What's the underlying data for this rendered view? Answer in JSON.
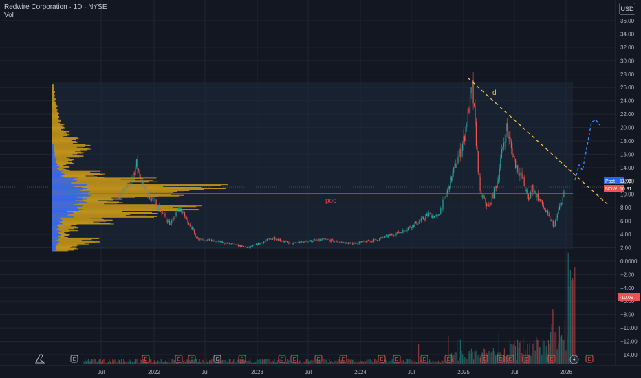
{
  "header": {
    "title": "Redwire Corporation · 1D · NYSE",
    "vol_label": "Vol",
    "currency": "USD"
  },
  "colors": {
    "background": "#131722",
    "up": "#26a69a",
    "down": "#ef5350",
    "profile_blue": "#2962ff",
    "profile_gold": "#d4a017",
    "poc_line": "#f23645",
    "trendline": "#f5c542",
    "projection": "#3d8bfd"
  },
  "annotations": {
    "poc_label": "poc",
    "trend_label": "d"
  },
  "price_tags": {
    "post_label": "Post",
    "post_value": "11.06",
    "close_label": "NOW",
    "close_value": "10.91",
    "indicator_value": "-10.09"
  },
  "chart_data": {
    "type": "candlestick",
    "y_scale": "linear",
    "ylim": [
      -15.2,
      37
    ],
    "y_ticks": [
      "36.00",
      "34.00",
      "32.00",
      "30.00",
      "28.00",
      "26.00",
      "24.00",
      "22.00",
      "20.00",
      "18.00",
      "16.00",
      "14.00",
      "12.00",
      "10.00",
      "8.00",
      "6.00",
      "4.00",
      "2.00",
      "0.0000",
      "−2.00",
      "−4.00",
      "−6.00",
      "−8.00",
      "−10.00",
      "−12.00",
      "−14.00"
    ],
    "x_ticks": [
      "Jul",
      "2022",
      "Jul",
      "2023",
      "Jul",
      "2024",
      "Jul",
      "2025",
      "Jul",
      "2026"
    ],
    "grid": true,
    "poc_price": 10.0,
    "price_path": [
      [
        "2021-09",
        10.0
      ],
      [
        "2021-10",
        11.0
      ],
      [
        "2021-11",
        14.5
      ],
      [
        "2021-12",
        10.5
      ],
      [
        "2022-01",
        9.0
      ],
      [
        "2022-02",
        7.0
      ],
      [
        "2022-03",
        5.5
      ],
      [
        "2022-04",
        8.0
      ],
      [
        "2022-05",
        6.0
      ],
      [
        "2022-06",
        3.5
      ],
      [
        "2022-07",
        3.2
      ],
      [
        "2022-09",
        2.8
      ],
      [
        "2022-12",
        2.0
      ],
      [
        "2023-03",
        3.5
      ],
      [
        "2023-05",
        2.6
      ],
      [
        "2023-07",
        3.0
      ],
      [
        "2023-09",
        3.2
      ],
      [
        "2023-12",
        2.6
      ],
      [
        "2024-03",
        3.2
      ],
      [
        "2024-06",
        4.5
      ],
      [
        "2024-08",
        6.0
      ],
      [
        "2024-09",
        7.0
      ],
      [
        "2024-10",
        6.5
      ],
      [
        "2024-11",
        10.0
      ],
      [
        "2024-12",
        14.0
      ],
      [
        "2025-01",
        18.0
      ],
      [
        "2025-02",
        26.0
      ],
      [
        "2025-02-15",
        18.0
      ],
      [
        "2025-03",
        10.0
      ],
      [
        "2025-04",
        8.0
      ],
      [
        "2025-05",
        12.0
      ],
      [
        "2025-06",
        20.0
      ],
      [
        "2025-07",
        15.0
      ],
      [
        "2025-08",
        12.0
      ],
      [
        "2025-08-20",
        9.0
      ],
      [
        "2025-09",
        11.0
      ],
      [
        "2025-10",
        9.0
      ],
      [
        "2025-11",
        6.5
      ],
      [
        "2025-11-20",
        5.2
      ],
      [
        "2025-12",
        7.0
      ],
      [
        "2026-01",
        11.0
      ]
    ],
    "volume_profile": {
      "price_bins": [
        26,
        25,
        24,
        23,
        22,
        21,
        20,
        19,
        18,
        17,
        16,
        15,
        14,
        13,
        12,
        11,
        10,
        9,
        8,
        7,
        6,
        5,
        4,
        3,
        2
      ],
      "gold": [
        2,
        3,
        4,
        6,
        8,
        10,
        14,
        20,
        30,
        44,
        36,
        25,
        20,
        60,
        120,
        200,
        150,
        80,
        170,
        120,
        70,
        30,
        20,
        55,
        30
      ],
      "blue": [
        0,
        0,
        0,
        0,
        0,
        0,
        0,
        0,
        0,
        2,
        3,
        5,
        8,
        14,
        30,
        40,
        45,
        40,
        35,
        25,
        12,
        8,
        10,
        8,
        5
      ]
    },
    "projection_path": [
      [
        13.5,
        "2026-01"
      ],
      [
        20.0,
        "2026-03"
      ],
      [
        21.0,
        "2026-03-15"
      ],
      [
        20.5,
        "2026-03-25"
      ]
    ]
  }
}
